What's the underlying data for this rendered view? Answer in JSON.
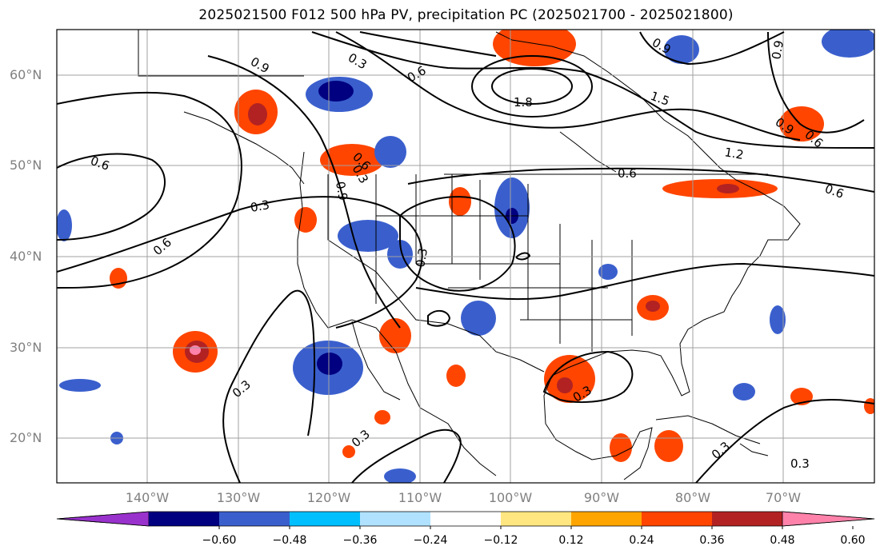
{
  "title": "2025021500 F012 500 hPa PV, precipitation PC (2025021700 - 2025021800)",
  "lat_labels": [
    "60°N",
    "50°N",
    "40°N",
    "30°N",
    "20°N"
  ],
  "lon_labels": [
    "140°W",
    "130°W",
    "120°W",
    "110°W",
    "100°W",
    "90°W",
    "80°W",
    "70°W"
  ],
  "colorbar": {
    "ticks": [
      "−0.60",
      "−0.48",
      "−0.36",
      "−0.24",
      "−0.12",
      "0.12",
      "0.24",
      "0.36",
      "0.48",
      "0.60"
    ],
    "colors": [
      "#9932cc",
      "#000080",
      "#3a5fcd",
      "#00bfff",
      "#b0e2ff",
      "#ffffff",
      "#ffe680",
      "#ffa500",
      "#ff4500",
      "#b22222",
      "#ff82ab"
    ]
  },
  "contour_labels": [
    "0.9",
    "0.3",
    "0.6",
    "1.8",
    "1.5",
    "0.9",
    "0.6",
    "0.6",
    "0.3",
    "0.6",
    "1.2",
    "0.6",
    "0.9",
    "0.3",
    "0.6",
    "0.6",
    "0.3",
    "0.3",
    "0.3",
    "0.3",
    "0.3",
    "0.3",
    "0.9",
    "0.9"
  ],
  "colors": {
    "frame": "#000000",
    "grid": "#a0a0a0",
    "tick_label": "#808080"
  }
}
